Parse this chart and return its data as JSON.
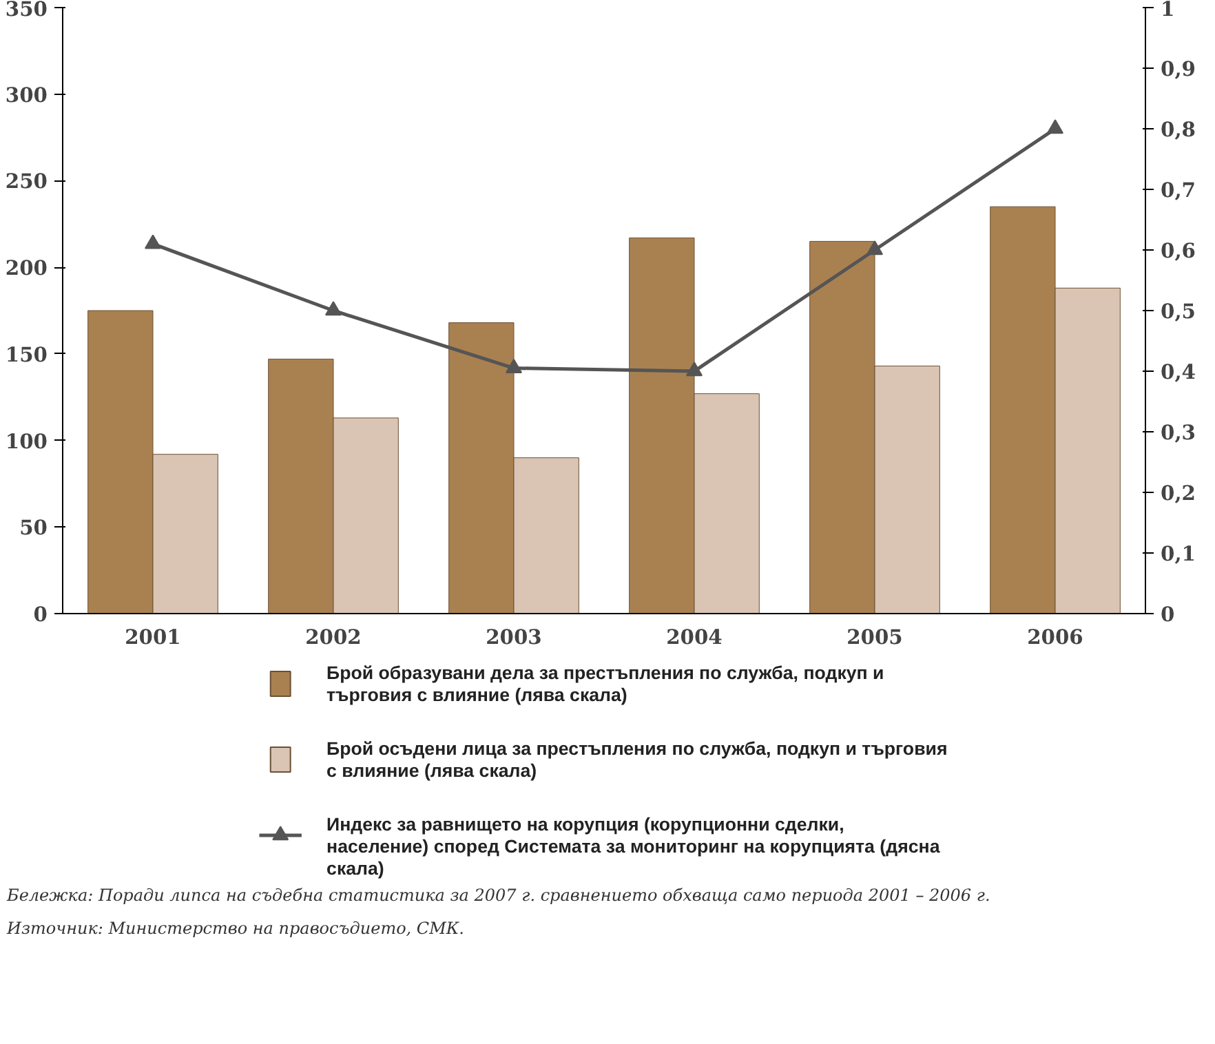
{
  "chart_data": {
    "type": "bar",
    "categories": [
      "2001",
      "2002",
      "2003",
      "2004",
      "2005",
      "2006"
    ],
    "series": [
      {
        "name": "Брой образувани дела за престъпления по служба, подкуп и търговия с влияние (лява скала)",
        "color": "#a98150",
        "values": [
          175,
          147,
          168,
          217,
          215,
          235
        ]
      },
      {
        "name": "Брой осъдени лица за престъпления по служба, подкуп и търговия с влияние (лява скала)",
        "color": "#dac4b4",
        "values": [
          92,
          113,
          90,
          127,
          143,
          188
        ]
      },
      {
        "name": "Индекс за равнището на корупция (корупционни сделки, население) според Системата за мониторинг на корупцията (дясна скала)",
        "color": "#555555",
        "type": "line",
        "axis": "y2",
        "marker": "triangle",
        "values": [
          0.61,
          0.5,
          0.405,
          0.4,
          0.6,
          0.8
        ]
      }
    ],
    "ylim": [
      0,
      350
    ],
    "yticks": [
      0,
      50,
      100,
      150,
      200,
      250,
      300,
      350
    ],
    "y2lim": [
      0,
      1
    ],
    "y2ticks": [
      {
        "value": 0,
        "label": "0"
      },
      {
        "value": 0.1,
        "label": "0,1"
      },
      {
        "value": 0.2,
        "label": "0,2"
      },
      {
        "value": 0.3,
        "label": "0,3"
      },
      {
        "value": 0.4,
        "label": "0,4"
      },
      {
        "value": 0.5,
        "label": "0,5"
      },
      {
        "value": 0.6,
        "label": "0,6"
      },
      {
        "value": 0.7,
        "label": "0,7"
      },
      {
        "value": 0.8,
        "label": "0,8"
      },
      {
        "value": 0.9,
        "label": "0,9"
      },
      {
        "value": 1,
        "label": "1"
      }
    ],
    "grid": false,
    "legend": "bottom",
    "annotations": [
      "Бележка:    Поради липса на съдебна статистика за 2007 г. сравнението обхваща само периода 2001 – 2006 г.",
      "Източник:  Министерство на правосъдието, СМК."
    ]
  }
}
